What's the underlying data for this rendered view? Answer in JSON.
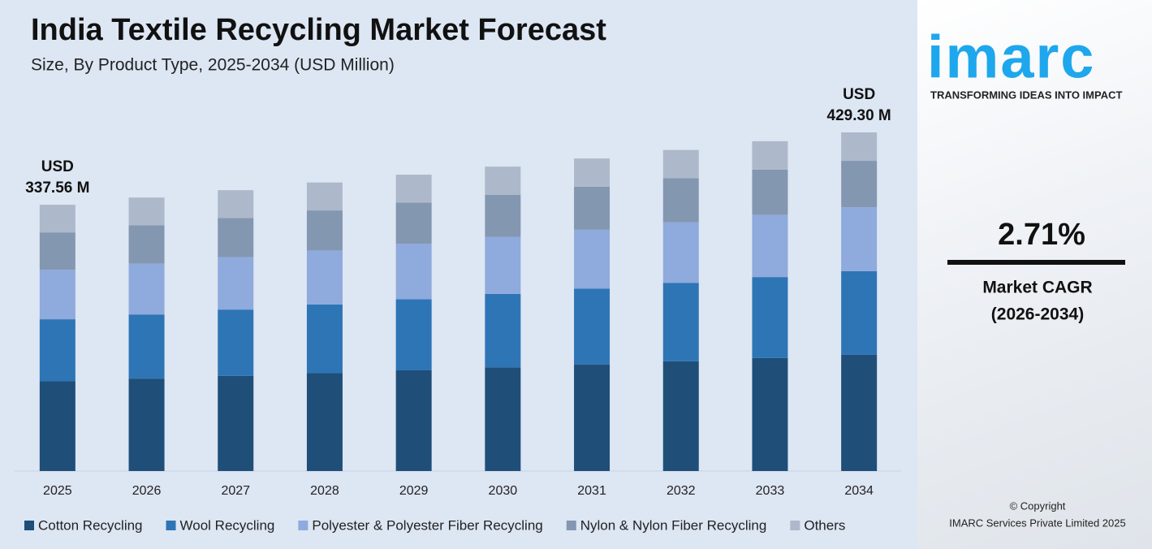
{
  "chart_data": {
    "type": "stacked_bar",
    "title": "India Textile Recycling Market Forecast",
    "subtitle": "Size, By Product Type, 2025-2034 (USD Million)",
    "categories": [
      "2025",
      "2026",
      "2027",
      "2028",
      "2029",
      "2030",
      "2031",
      "2032",
      "2033",
      "2034"
    ],
    "series": [
      {
        "name": "Cotton Recycling",
        "color": "#1f4e79",
        "values": [
          113.8,
          117.2,
          120.6,
          124.1,
          127.7,
          131.5,
          135.2,
          139.2,
          143.2,
          147.3
        ]
      },
      {
        "name": "Wool Recycling",
        "color": "#2e75b6",
        "values": [
          78.6,
          81.3,
          84.1,
          87.0,
          90.0,
          93.0,
          96.1,
          99.4,
          102.7,
          106.0
        ]
      },
      {
        "name": "Polyester & Polyester Fiber Recycling",
        "color": "#8faadc",
        "values": [
          62.8,
          64.6,
          66.5,
          68.5,
          70.5,
          72.5,
          74.6,
          76.7,
          79.0,
          81.2
        ]
      },
      {
        "name": "Nylon & Nylon Fiber Recycling",
        "color": "#8497b0",
        "values": [
          47.3,
          48.4,
          49.6,
          50.8,
          52.0,
          53.3,
          54.6,
          55.9,
          57.3,
          58.7
        ]
      },
      {
        "name": "Others",
        "color": "#adb9ca",
        "values": [
          35.06,
          35.2,
          35.3,
          35.4,
          35.5,
          35.6,
          35.7,
          35.8,
          35.9,
          36.1
        ]
      }
    ],
    "annotations": [
      [
        "USD",
        "337.56 M"
      ],
      [
        "USD",
        "429.30 M"
      ]
    ],
    "legend": "bottom"
  },
  "sidebar": {
    "logo": "imarc",
    "tagline": "TRANSFORMING IDEAS INTO IMPACT",
    "cagr": "2.71%",
    "cagr_label": "Market CAGR",
    "cagr_period": "(2026-2034)",
    "copyright": "© Copyright",
    "company": "IMARC Services Private Limited 2025"
  }
}
